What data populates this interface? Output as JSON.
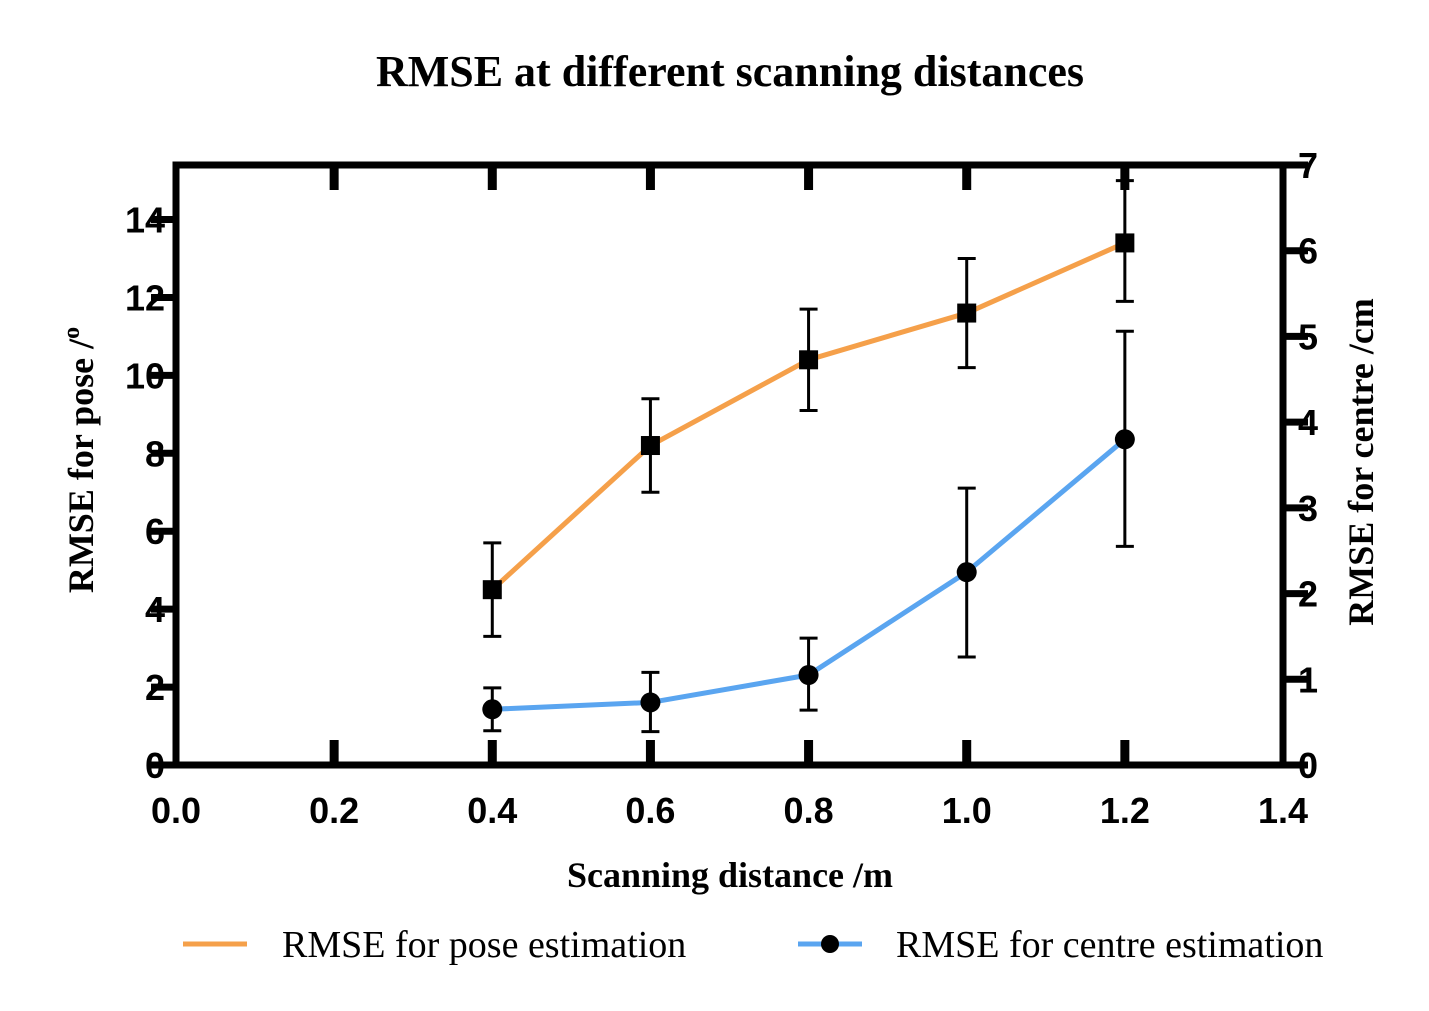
{
  "chart_data": {
    "type": "line",
    "title": "RMSE at different scanning distances",
    "xlabel": "Scanning distance /m",
    "ylabel_left_prefix": "RMSE for pose /",
    "ylabel_left_sup": "o",
    "ylabel_right": "RMSE for centre /cm",
    "xlim": [
      0.0,
      1.4
    ],
    "ylim_left": [
      0,
      15.4
    ],
    "ylim_right": [
      0,
      7
    ],
    "x_ticks": [
      "0.0",
      "0.2",
      "0.4",
      "0.6",
      "0.8",
      "1.0",
      "1.2",
      "1.4"
    ],
    "y_left_ticks": [
      "0",
      "2",
      "4",
      "6",
      "8",
      "10",
      "12",
      "14"
    ],
    "y_right_ticks": [
      "0",
      "1",
      "2",
      "3",
      "4",
      "5",
      "6",
      "7"
    ],
    "grid": false,
    "legend_position": "bottom",
    "series": [
      {
        "name": "RMSE for pose estimation",
        "axis": "left",
        "color": "#F5A04A",
        "marker": "square",
        "x": [
          0.4,
          0.6,
          0.8,
          1.0,
          1.2
        ],
        "y": [
          4.5,
          8.2,
          10.4,
          11.6,
          13.4
        ],
        "err_low": [
          3.3,
          7.0,
          9.1,
          10.2,
          11.9
        ],
        "err_high": [
          5.7,
          9.4,
          11.7,
          13.0,
          15.0
        ]
      },
      {
        "name": "RMSE for centre estimation",
        "axis": "right",
        "color": "#5AA5F0",
        "marker": "circle",
        "x": [
          0.4,
          0.6,
          0.8,
          1.0,
          1.2
        ],
        "y": [
          0.65,
          0.73,
          1.05,
          2.25,
          3.8
        ],
        "err_low": [
          0.4,
          0.39,
          0.64,
          1.26,
          2.55
        ],
        "err_high": [
          0.9,
          1.08,
          1.48,
          3.23,
          5.06
        ]
      }
    ]
  }
}
